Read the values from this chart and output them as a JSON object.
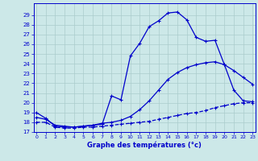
{
  "xlabel": "Graphe des températures (°c)",
  "bg_color": "#cce8e8",
  "grid_color": "#aacccc",
  "line_color": "#0000cc",
  "ylim": [
    17,
    30
  ],
  "xlim": [
    0,
    23
  ],
  "yticks": [
    17,
    18,
    19,
    20,
    21,
    22,
    23,
    24,
    25,
    26,
    27,
    28,
    29
  ],
  "xticks": [
    0,
    1,
    2,
    3,
    4,
    5,
    6,
    7,
    8,
    9,
    10,
    11,
    12,
    13,
    14,
    15,
    16,
    17,
    18,
    19,
    20,
    21,
    22,
    23
  ],
  "line1_x": [
    0,
    1,
    2,
    3,
    4,
    5,
    6,
    7,
    8,
    9,
    10,
    11,
    12,
    13,
    14,
    15,
    16,
    17,
    18,
    19,
    20,
    21,
    22,
    23
  ],
  "line1_y": [
    19.0,
    18.4,
    17.6,
    17.5,
    17.5,
    17.6,
    17.7,
    17.8,
    20.7,
    20.3,
    24.8,
    26.1,
    27.8,
    28.4,
    29.2,
    29.3,
    28.5,
    26.7,
    26.3,
    26.4,
    23.9,
    21.3,
    20.2,
    20.1
  ],
  "line2_x": [
    0,
    1,
    2,
    3,
    4,
    5,
    6,
    7,
    8,
    9,
    10,
    11,
    12,
    13,
    14,
    15,
    16,
    17,
    18,
    19,
    20,
    21,
    22,
    23
  ],
  "line2_y": [
    18.5,
    18.3,
    17.7,
    17.6,
    17.5,
    17.6,
    17.7,
    17.9,
    18.0,
    18.2,
    18.6,
    19.3,
    20.2,
    21.3,
    22.4,
    23.1,
    23.6,
    23.9,
    24.1,
    24.2,
    23.9,
    23.3,
    22.6,
    21.9
  ],
  "line3_x": [
    0,
    1,
    2,
    3,
    4,
    5,
    6,
    7,
    8,
    9,
    10,
    11,
    12,
    13,
    14,
    15,
    16,
    17,
    18,
    19,
    20,
    21,
    22,
    23
  ],
  "line3_y": [
    18.0,
    18.0,
    17.5,
    17.4,
    17.4,
    17.5,
    17.5,
    17.6,
    17.7,
    17.8,
    17.9,
    18.0,
    18.1,
    18.3,
    18.5,
    18.7,
    18.9,
    19.0,
    19.2,
    19.5,
    19.7,
    19.9,
    20.0,
    20.0
  ]
}
